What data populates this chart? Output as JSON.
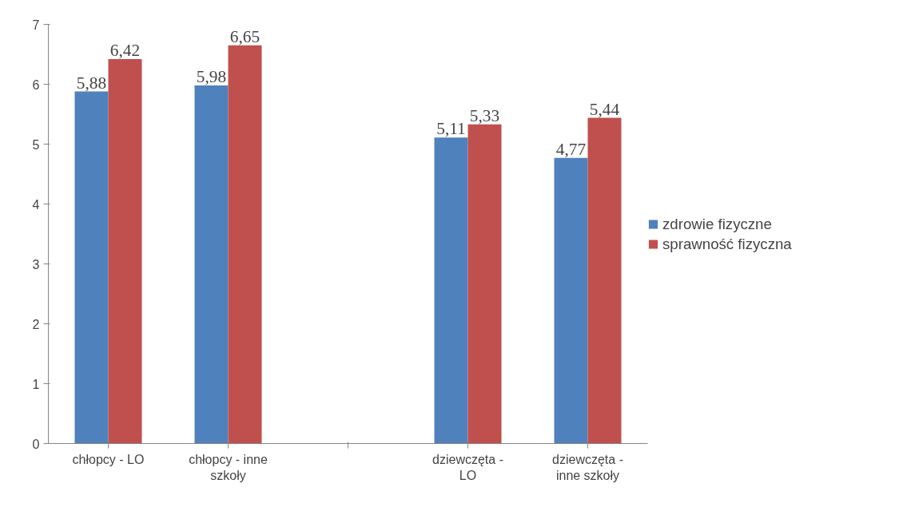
{
  "chart_data": {
    "type": "bar",
    "categories": [
      "chłopcy - LO",
      "chłopcy - inne szkoły",
      null,
      "dziewczęta - LO",
      "dziewczęta - inne szkoły"
    ],
    "series": [
      {
        "name": "zdrowie fizyczne",
        "color": "#4f81bd",
        "values": [
          5.88,
          5.98,
          null,
          5.11,
          4.77
        ],
        "value_labels": [
          "5,88",
          "5,98",
          null,
          "5,11",
          "4,77"
        ]
      },
      {
        "name": "sprawność fizyczna",
        "color": "#c0504d",
        "values": [
          6.42,
          6.65,
          null,
          5.33,
          5.44
        ],
        "value_labels": [
          "6,42",
          "6,65",
          null,
          "5,33",
          "5,44"
        ]
      }
    ],
    "ylim": [
      0,
      7
    ],
    "yticks": [
      0,
      1,
      2,
      3,
      4,
      5,
      6,
      7
    ],
    "grid": false,
    "legend": "right"
  }
}
